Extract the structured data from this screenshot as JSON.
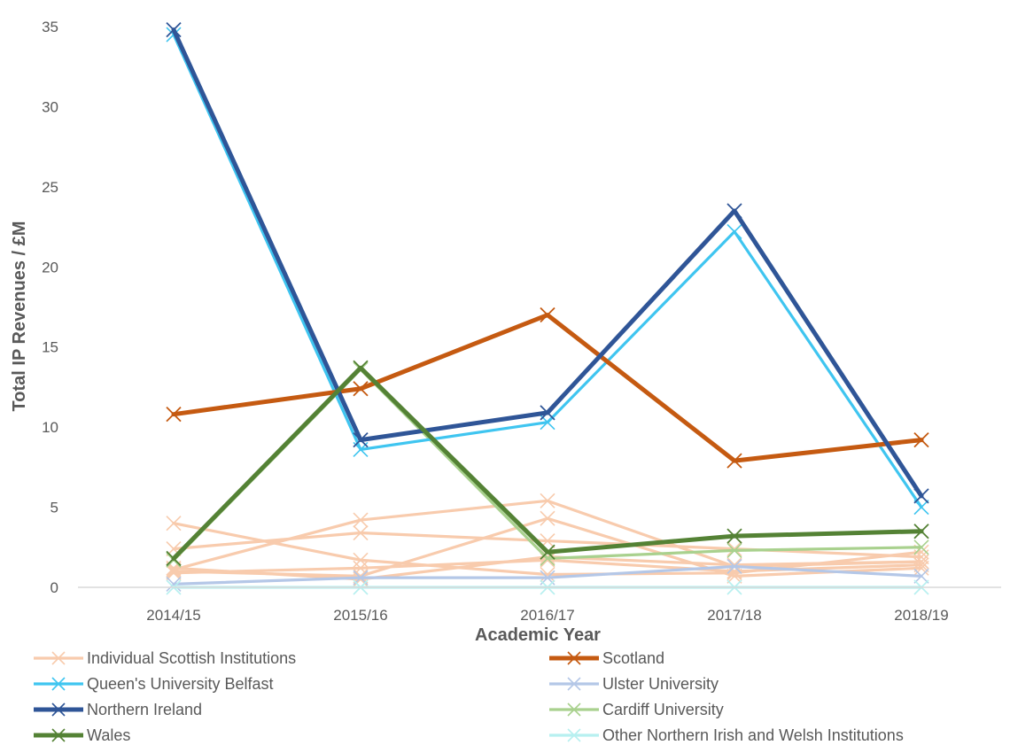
{
  "chart_data": {
    "type": "line",
    "title": "",
    "xlabel": "Academic Year",
    "ylabel": "Total IP Revenues / £M",
    "categories": [
      "2014/15",
      "2015/16",
      "2016/17",
      "2017/18",
      "2018/19"
    ],
    "ylim": [
      0,
      35
    ],
    "yticks": [
      0,
      5,
      10,
      15,
      20,
      25,
      30,
      35
    ],
    "grid": false,
    "legend_position": "bottom",
    "legend": [
      "Individual Scottish Institutions",
      "Scotland",
      "Queen's University Belfast",
      "Ulster University",
      "Northern Ireland",
      "Cardiff University",
      "Wales",
      "Other Northern Irish and Welsh Institutions"
    ],
    "individual_scottish_institutions": {
      "color": "#f8cbad",
      "series": [
        {
          "values": [
            4.0,
            1.7,
            0.8,
            0.9,
            2.2
          ]
        },
        {
          "values": [
            2.4,
            3.4,
            2.9,
            2.4,
            1.9
          ]
        },
        {
          "values": [
            1.1,
            4.2,
            5.4,
            1.3,
            1.6
          ]
        },
        {
          "values": [
            0.9,
            1.2,
            1.7,
            1.0,
            1.4
          ]
        },
        {
          "values": [
            1.0,
            0.7,
            4.3,
            0.7,
            1.2
          ]
        },
        {
          "values": [
            1.2,
            0.5,
            1.9,
            1.4,
            1.6
          ]
        }
      ]
    },
    "series": [
      {
        "name": "Ulster University",
        "color": "#b4c7e7",
        "width": "thin",
        "values": [
          0.2,
          0.6,
          0.6,
          1.3,
          0.7
        ]
      },
      {
        "name": "Other Northern Irish and Welsh Institutions",
        "color": "#b7f0f0",
        "width": "thin",
        "values": [
          0.0,
          0.0,
          0.0,
          0.0,
          0.0
        ]
      },
      {
        "name": "Cardiff University",
        "color": "#a9d18e",
        "width": "thin",
        "values": [
          1.7,
          13.6,
          1.8,
          2.3,
          2.5
        ]
      },
      {
        "name": "Queen's University Belfast",
        "color": "#3fc5f0",
        "width": "thin",
        "values": [
          34.5,
          8.6,
          10.3,
          22.2,
          5.0
        ]
      },
      {
        "name": "Scotland",
        "color": "#c55a11",
        "width": "thick",
        "values": [
          10.8,
          12.4,
          17.0,
          7.9,
          9.2
        ]
      },
      {
        "name": "Northern Ireland",
        "color": "#2f5597",
        "width": "thick",
        "values": [
          34.8,
          9.2,
          10.9,
          23.5,
          5.7
        ]
      },
      {
        "name": "Wales",
        "color": "#548235",
        "width": "thick",
        "values": [
          1.8,
          13.7,
          2.2,
          3.2,
          3.5
        ]
      }
    ]
  }
}
